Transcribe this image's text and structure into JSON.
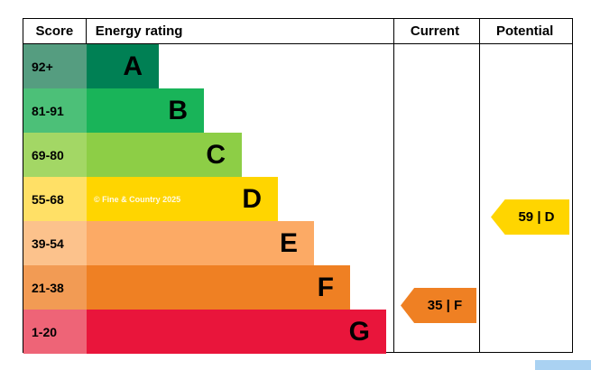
{
  "header": {
    "score": "Score",
    "rating": "Energy rating",
    "current": "Current",
    "potential": "Potential"
  },
  "watermark": "© Fine & Country 2025",
  "arrows": {
    "current": {
      "label": "35 | F",
      "color": "#ef8023"
    },
    "potential": {
      "label": "59 | D",
      "color": "#ffd500"
    }
  },
  "accent_color": "#aad2f2",
  "chart_data": {
    "type": "bar",
    "title": "Energy rating",
    "categories": [
      "A",
      "B",
      "C",
      "D",
      "E",
      "F",
      "G"
    ],
    "score_ranges": [
      "92+",
      "81-91",
      "69-80",
      "55-68",
      "39-54",
      "21-38",
      "1-20"
    ],
    "colors": [
      "#008054",
      "#19b459",
      "#8dce46",
      "#ffd500",
      "#fcaa65",
      "#ef8023",
      "#e9153b"
    ],
    "tints": [
      "#559d80",
      "#4cc078",
      "#a3d765",
      "#ffe066",
      "#fcc28c",
      "#f29b54",
      "#ee6477"
    ],
    "current": {
      "value": 35,
      "band": "F"
    },
    "potential": {
      "value": 59,
      "band": "D"
    },
    "legend_position": "none",
    "grid": false
  }
}
